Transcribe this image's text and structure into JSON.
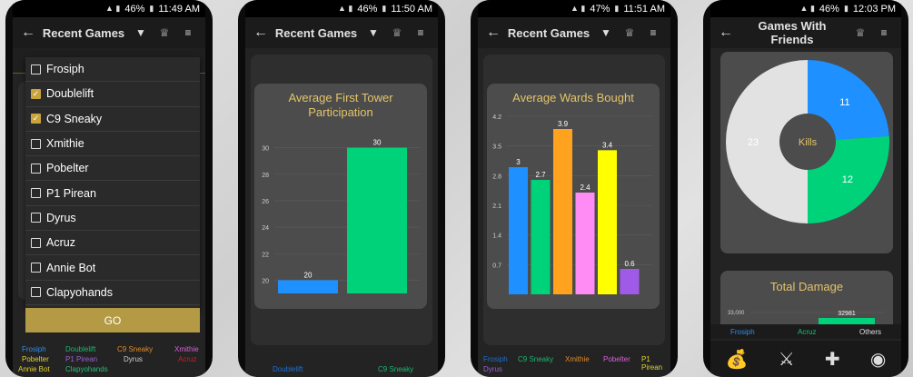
{
  "status_bars": [
    {
      "battery": "46%",
      "time": "11:49 AM"
    },
    {
      "battery": "46%",
      "time": "11:50 AM"
    },
    {
      "battery": "47%",
      "time": "11:51 AM"
    },
    {
      "battery": "46%",
      "time": "12:03 PM"
    }
  ],
  "screen1": {
    "title": "Recent Games",
    "players": [
      {
        "name": "Frosiph",
        "checked": false
      },
      {
        "name": "Doublelift",
        "checked": true
      },
      {
        "name": "C9 Sneaky",
        "checked": true
      },
      {
        "name": "Xmithie",
        "checked": false
      },
      {
        "name": "Pobelter",
        "checked": false
      },
      {
        "name": "P1 Pirean",
        "checked": false
      },
      {
        "name": "Dyrus",
        "checked": false
      },
      {
        "name": "Acruz",
        "checked": false
      },
      {
        "name": "Annie Bot",
        "checked": false
      },
      {
        "name": "Clapyohands",
        "checked": false
      }
    ],
    "go_label": "GO",
    "legend": [
      {
        "name": "Frosiph",
        "color": "#2d8ef0"
      },
      {
        "name": "Doublelift",
        "color": "#17b96d"
      },
      {
        "name": "C9 Sneaky",
        "color": "#e08a28"
      },
      {
        "name": "Xmithie",
        "color": "#d960d8"
      },
      {
        "name": "Pobelter",
        "color": "#e2d12b"
      },
      {
        "name": "P1 Pirean",
        "color": "#9a5fd8"
      },
      {
        "name": "Dyrus",
        "color": "#d0d0d0"
      },
      {
        "name": "Acruz",
        "color": "#cc2020"
      },
      {
        "name": "Annie Bot",
        "color": "#e2d12b"
      },
      {
        "name": "Clapyohands",
        "color": "#20c07a"
      }
    ]
  },
  "screen2": {
    "title": "Recent Games",
    "legend": [
      {
        "name": "Doublelift",
        "color": "#1f6fd0"
      },
      {
        "name": "C9 Sneaky",
        "color": "#18b870"
      }
    ]
  },
  "screen3": {
    "title": "Recent Games",
    "legend": [
      {
        "name": "Frosiph",
        "color": "#1f6fd0"
      },
      {
        "name": "C9 Sneaky",
        "color": "#18b870"
      },
      {
        "name": "Xmithie",
        "color": "#e08a28"
      },
      {
        "name": "Pobelter",
        "color": "#d960d8"
      },
      {
        "name": "P1 Pirean",
        "color": "#e2d12b"
      },
      {
        "name": "Dyrus",
        "color": "#9a5fd8"
      }
    ]
  },
  "screen4": {
    "title": "Games With Friends",
    "total_damage_title": "Total Damage",
    "legend": [
      {
        "name": "Frosiph",
        "color": "#2d8ef0"
      },
      {
        "name": "Acruz",
        "color": "#17c070"
      },
      {
        "name": "Others",
        "color": "#e0e0e0"
      }
    ]
  },
  "chart_data": [
    {
      "type": "bar",
      "title": "Average First Tower Participation",
      "categories": [
        "Doublelift",
        "C9 Sneaky"
      ],
      "values": [
        20,
        30
      ],
      "colors": [
        "#1e90ff",
        "#00d27a"
      ],
      "yticks": [
        20,
        22,
        24,
        26,
        28,
        30
      ],
      "ylim": [
        19,
        31
      ]
    },
    {
      "type": "bar",
      "title": "Average Wards Bought",
      "categories": [
        "Frosiph",
        "C9 Sneaky",
        "Xmithie",
        "Pobelter",
        "P1 Pirean",
        "Dyrus"
      ],
      "values": [
        3,
        2.7,
        3.9,
        2.4,
        3.4,
        0.6
      ],
      "colors": [
        "#1e90ff",
        "#00d27a",
        "#ffa21e",
        "#ff8cf4",
        "#ffff00",
        "#a05ae8"
      ],
      "yticks": [
        "0.7",
        "1.4",
        "2.1",
        "2.8",
        "3.5",
        "4.2"
      ],
      "ylim": [
        0,
        4.2
      ]
    },
    {
      "type": "pie",
      "center_label": "Kills",
      "slices": [
        {
          "label": "11",
          "value": 11,
          "color": "#1e90ff"
        },
        {
          "label": "12",
          "value": 12,
          "color": "#00d27a"
        },
        {
          "label": "23",
          "value": 23,
          "color": "#e2e2e2"
        }
      ]
    },
    {
      "type": "bar",
      "title": "Total Damage",
      "categories": [
        "Acruz"
      ],
      "values": [
        32981
      ],
      "yticks": [
        "33,000"
      ],
      "colors": [
        "#00d27a"
      ]
    }
  ]
}
